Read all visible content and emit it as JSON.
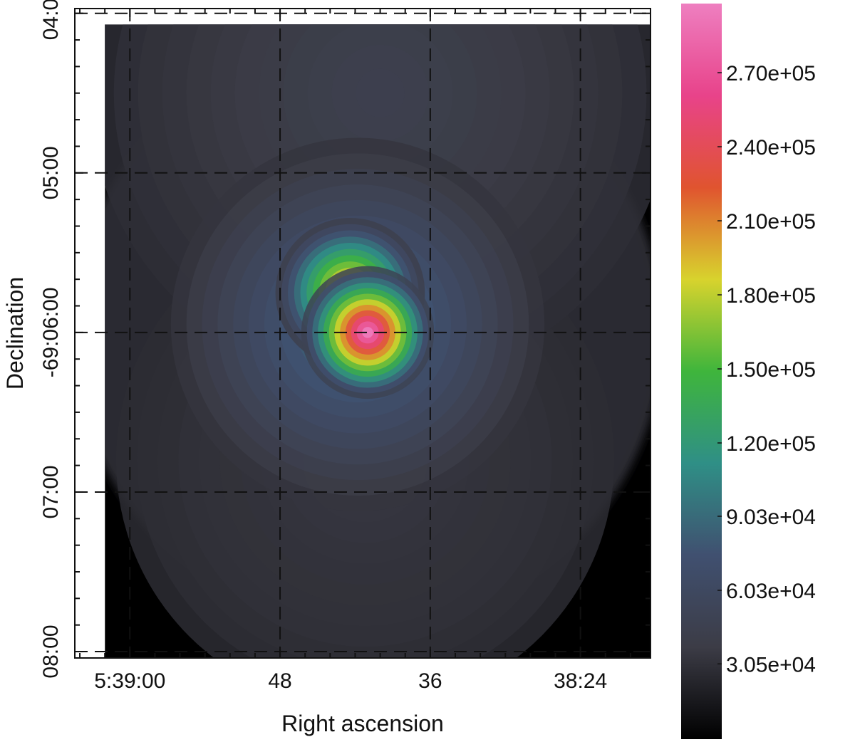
{
  "chart_data": {
    "type": "heatmap",
    "title": "",
    "xlabel": "Right ascension",
    "ylabel": "Declination",
    "xticks": [
      {
        "label": "5:39:00",
        "ra_sec": 540
      },
      {
        "label": "48",
        "ra_sec": 528
      },
      {
        "label": "36",
        "ra_sec": 516
      },
      {
        "label": "38:24",
        "ra_sec": 504
      }
    ],
    "yticks": [
      {
        "label": "04:00",
        "dec_arcmin_offset": -2
      },
      {
        "label": "05:00",
        "dec_arcmin_offset": -1
      },
      {
        "label": "-69:06:00",
        "dec_arcmin_offset": 0
      },
      {
        "label": "07:00",
        "dec_arcmin_offset": 1
      },
      {
        "label": "08:00",
        "dec_arcmin_offset": 2
      }
    ],
    "xlim_ra_sec": [
      544.4,
      498.4
    ],
    "ylim_dec_arcmin_offset": [
      -2.03,
      2.04
    ],
    "grid": true,
    "grid_style": "dashed",
    "colorbar": {
      "min": 0,
      "max": 298000,
      "ticks": [
        "3.05e+04",
        "6.03e+04",
        "9.03e+04",
        "1.20e+05",
        "1.50e+05",
        "1.80e+05",
        "2.10e+05",
        "2.40e+05",
        "2.70e+05"
      ],
      "tick_values": [
        30500,
        60300,
        90300,
        120000,
        150000,
        180000,
        210000,
        240000,
        270000
      ],
      "colors": [
        "#000000",
        "#3c3c46",
        "#405070",
        "#2f8f86",
        "#3fb53c",
        "#d8d32d",
        "#e0542f",
        "#e8438a",
        "#ee7fc0"
      ]
    },
    "image_extent_ra_sec": [
      542.0,
      498.4
    ],
    "image_extent_dec_arcmin_offset": [
      -1.93,
      2.04
    ],
    "sources": [
      {
        "ra_sec": 521.0,
        "dec_arcmin_offset": 0.0,
        "peak": 298000,
        "sigma_arcmin": 0.16
      },
      {
        "ra_sec": 522.4,
        "dec_arcmin_offset": -0.25,
        "peak": 230000,
        "sigma_arcmin": 0.18
      },
      {
        "ra_sec": 521.8,
        "dec_arcmin_offset": -0.05,
        "peak": 100000,
        "sigma_arcmin": 0.45
      },
      {
        "ra_sec": 520.0,
        "dec_arcmin_offset": -1.5,
        "peak": 45000,
        "sigma_arcmin": 0.7
      },
      {
        "ra_sec": 521.2,
        "dec_arcmin_offset": 0.8,
        "peak": 35000,
        "sigma_arcmin": 0.6
      }
    ],
    "diffuse_level": 27000,
    "diffuse_radius_arcmin": 1.85
  }
}
